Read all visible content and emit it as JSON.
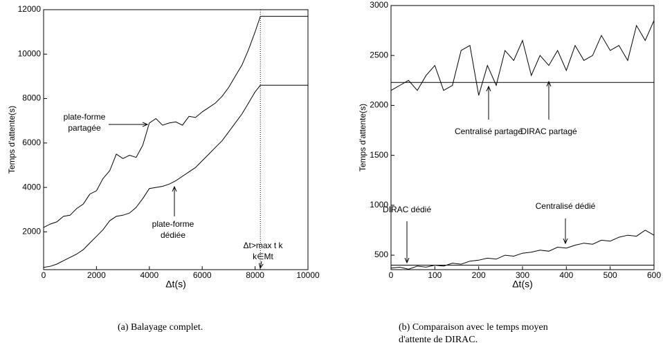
{
  "chart_data": [
    {
      "type": "line",
      "ylabel": "Temps d'attente(s)",
      "xlabel": "Δt(s)",
      "caption": "(a) Balayage complet.",
      "xlim": [
        0,
        10000
      ],
      "ylim": [
        300,
        12000
      ],
      "xticks": [
        0,
        2000,
        4000,
        6000,
        8000,
        10000
      ],
      "yticks": [
        2000,
        4000,
        6000,
        8000,
        10000,
        12000
      ],
      "vline": 8200,
      "x": [
        0,
        250,
        500,
        750,
        1000,
        1250,
        1500,
        1750,
        2000,
        2250,
        2500,
        2750,
        3000,
        3250,
        3500,
        3750,
        4000,
        4250,
        4500,
        4750,
        5000,
        5250,
        5500,
        5750,
        6000,
        6250,
        6500,
        6750,
        7000,
        7250,
        7500,
        7750,
        8000,
        8200,
        10000
      ],
      "series": [
        {
          "name": "plate-forme partagée",
          "color": "#000000",
          "values": [
            2200,
            2350,
            2450,
            2700,
            2750,
            3050,
            3250,
            3700,
            3850,
            4400,
            4750,
            5500,
            5300,
            5450,
            5350,
            5900,
            6900,
            7100,
            6800,
            6900,
            6950,
            6800,
            7200,
            7150,
            7400,
            7600,
            7800,
            8100,
            8500,
            9000,
            9500,
            10200,
            11000,
            11700,
            11700
          ]
        },
        {
          "name": "plate-forme dédiée",
          "color": "#000000",
          "values": [
            400,
            450,
            550,
            700,
            850,
            1000,
            1200,
            1500,
            1800,
            2100,
            2500,
            2700,
            2750,
            2850,
            3100,
            3500,
            3950,
            4000,
            4050,
            4150,
            4300,
            4500,
            4700,
            4900,
            5200,
            5500,
            5800,
            6100,
            6500,
            6900,
            7300,
            7800,
            8300,
            8600,
            8600
          ]
        }
      ],
      "annotations": [
        {
          "lines": [
            "plate-forme",
            "partagée"
          ]
        },
        {
          "lines": [
            "plate-forme",
            "dédiée"
          ]
        },
        {
          "lines": [
            "Δt>max t k",
            "k∈Mt"
          ]
        }
      ]
    },
    {
      "type": "line",
      "ylabel": "Temps d'attente(s)",
      "xlabel": "Δt(s)",
      "caption": [
        "(b) Comparaison avec le temps moyen",
        "d'attente de DIRAC."
      ],
      "xlim": [
        0,
        600
      ],
      "ylim": [
        355,
        3000
      ],
      "xticks": [
        0,
        100,
        200,
        300,
        400,
        500,
        600
      ],
      "yticks": [
        500,
        1000,
        1500,
        2000,
        2500,
        3000
      ],
      "x": [
        0,
        20,
        40,
        60,
        80,
        100,
        120,
        140,
        160,
        180,
        200,
        220,
        240,
        260,
        280,
        300,
        320,
        340,
        360,
        380,
        400,
        420,
        440,
        460,
        480,
        500,
        520,
        540,
        560,
        580,
        600
      ],
      "series": [
        {
          "name": "Centralisé partagé",
          "color": "#000000",
          "values": [
            2150,
            2200,
            2250,
            2150,
            2300,
            2400,
            2150,
            2200,
            2550,
            2600,
            2100,
            2400,
            2200,
            2550,
            2450,
            2650,
            2300,
            2500,
            2400,
            2550,
            2350,
            2600,
            2450,
            2500,
            2700,
            2550,
            2600,
            2450,
            2800,
            2650,
            2850
          ]
        },
        {
          "name": "DIRAC partagé",
          "color": "#000000",
          "values": [
            2230,
            2230,
            2230,
            2230,
            2230,
            2230,
            2230,
            2230,
            2230,
            2230,
            2230,
            2230,
            2230,
            2230,
            2230,
            2230,
            2230,
            2230,
            2230,
            2230,
            2230,
            2230,
            2230,
            2230,
            2230,
            2230,
            2230,
            2230,
            2230,
            2230,
            2230
          ]
        },
        {
          "name": "Centralisé dédié",
          "color": "#000000",
          "values": [
            370,
            380,
            360,
            390,
            380,
            400,
            390,
            420,
            410,
            440,
            450,
            470,
            460,
            500,
            490,
            520,
            530,
            550,
            540,
            580,
            570,
            600,
            620,
            610,
            650,
            640,
            680,
            700,
            690,
            750,
            700
          ]
        },
        {
          "name": "DIRAC dédié",
          "color": "#000000",
          "values": [
            400,
            400,
            400,
            400,
            400,
            400,
            400,
            400,
            400,
            400,
            400,
            400,
            400,
            400,
            400,
            400,
            400,
            400,
            400,
            400,
            400,
            400,
            400,
            400,
            400,
            400,
            400,
            400,
            400,
            400,
            400
          ]
        }
      ]
    }
  ]
}
